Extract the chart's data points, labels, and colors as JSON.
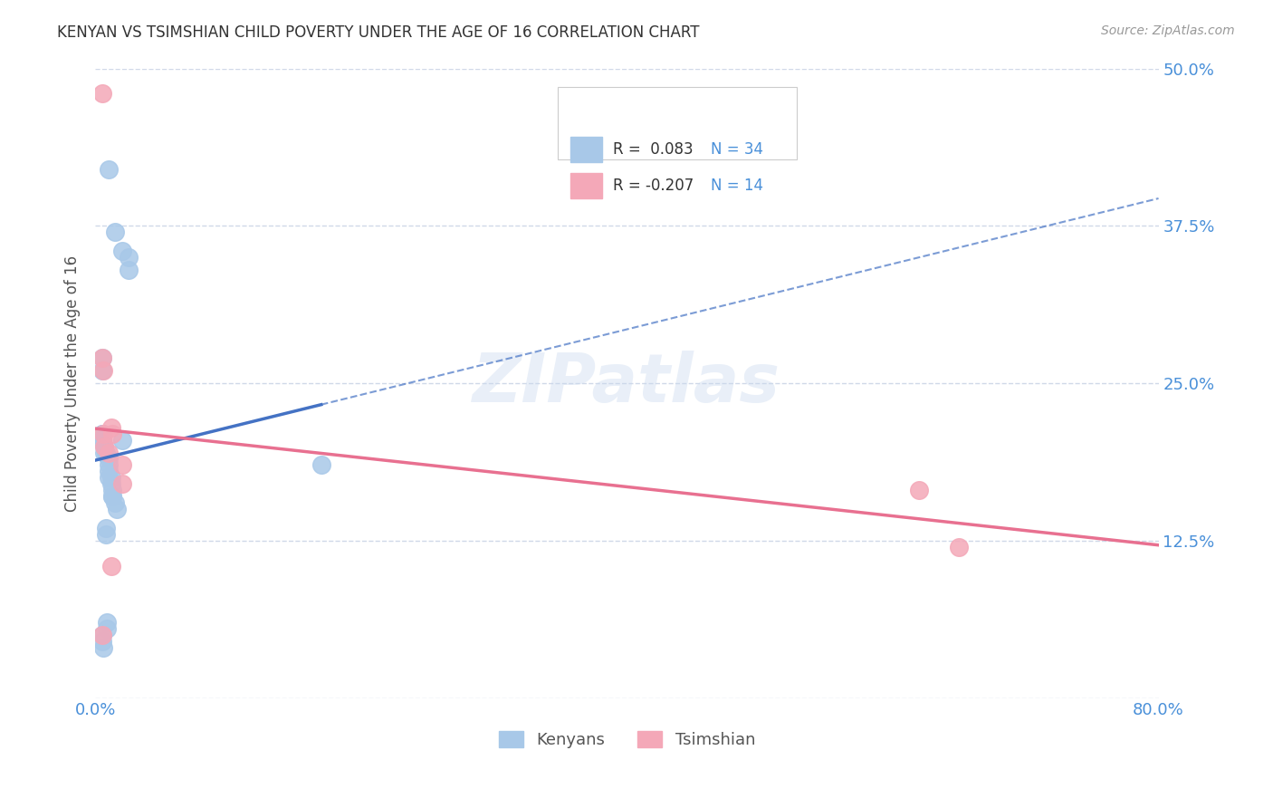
{
  "title": "KENYAN VS TSIMSHIAN CHILD POVERTY UNDER THE AGE OF 16 CORRELATION CHART",
  "source": "Source: ZipAtlas.com",
  "ylabel": "Child Poverty Under the Age of 16",
  "xlim": [
    0.0,
    0.8
  ],
  "ylim": [
    0.0,
    0.5
  ],
  "xticks": [
    0.0,
    0.1,
    0.2,
    0.3,
    0.4,
    0.5,
    0.6,
    0.7,
    0.8
  ],
  "xticklabels": [
    "0.0%",
    "",
    "",
    "",
    "",
    "",
    "",
    "",
    "80.0%"
  ],
  "ytick_positions": [
    0.0,
    0.125,
    0.25,
    0.375,
    0.5
  ],
  "yticklabels": [
    "",
    "12.5%",
    "25.0%",
    "37.5%",
    "50.0%"
  ],
  "watermark": "ZIPatlas",
  "kenyan_color": "#a8c8e8",
  "tsimshian_color": "#f4a8b8",
  "kenyan_line_color": "#4472c4",
  "tsimshian_line_color": "#e87090",
  "kenyan_x": [
    0.01,
    0.015,
    0.02,
    0.025,
    0.025,
    0.005,
    0.005,
    0.005,
    0.005,
    0.005,
    0.005,
    0.007,
    0.007,
    0.008,
    0.01,
    0.01,
    0.01,
    0.01,
    0.012,
    0.012,
    0.013,
    0.013,
    0.013,
    0.015,
    0.016,
    0.02,
    0.008,
    0.008,
    0.009,
    0.009,
    0.17,
    0.005,
    0.005,
    0.006
  ],
  "kenyan_y": [
    0.42,
    0.37,
    0.355,
    0.35,
    0.34,
    0.27,
    0.26,
    0.21,
    0.21,
    0.205,
    0.205,
    0.2,
    0.195,
    0.195,
    0.19,
    0.185,
    0.18,
    0.175,
    0.175,
    0.17,
    0.165,
    0.16,
    0.16,
    0.155,
    0.15,
    0.205,
    0.135,
    0.13,
    0.06,
    0.055,
    0.185,
    0.05,
    0.045,
    0.04
  ],
  "tsimshian_x": [
    0.005,
    0.005,
    0.006,
    0.006,
    0.007,
    0.01,
    0.012,
    0.013,
    0.02,
    0.02,
    0.62,
    0.65,
    0.005,
    0.012
  ],
  "tsimshian_y": [
    0.48,
    0.27,
    0.26,
    0.21,
    0.2,
    0.195,
    0.215,
    0.21,
    0.185,
    0.17,
    0.165,
    0.12,
    0.05,
    0.105
  ],
  "background_color": "#ffffff",
  "grid_color": "#d0d8e8",
  "title_color": "#333333",
  "axis_label_color": "#555555",
  "tick_label_color": "#4a90d9"
}
